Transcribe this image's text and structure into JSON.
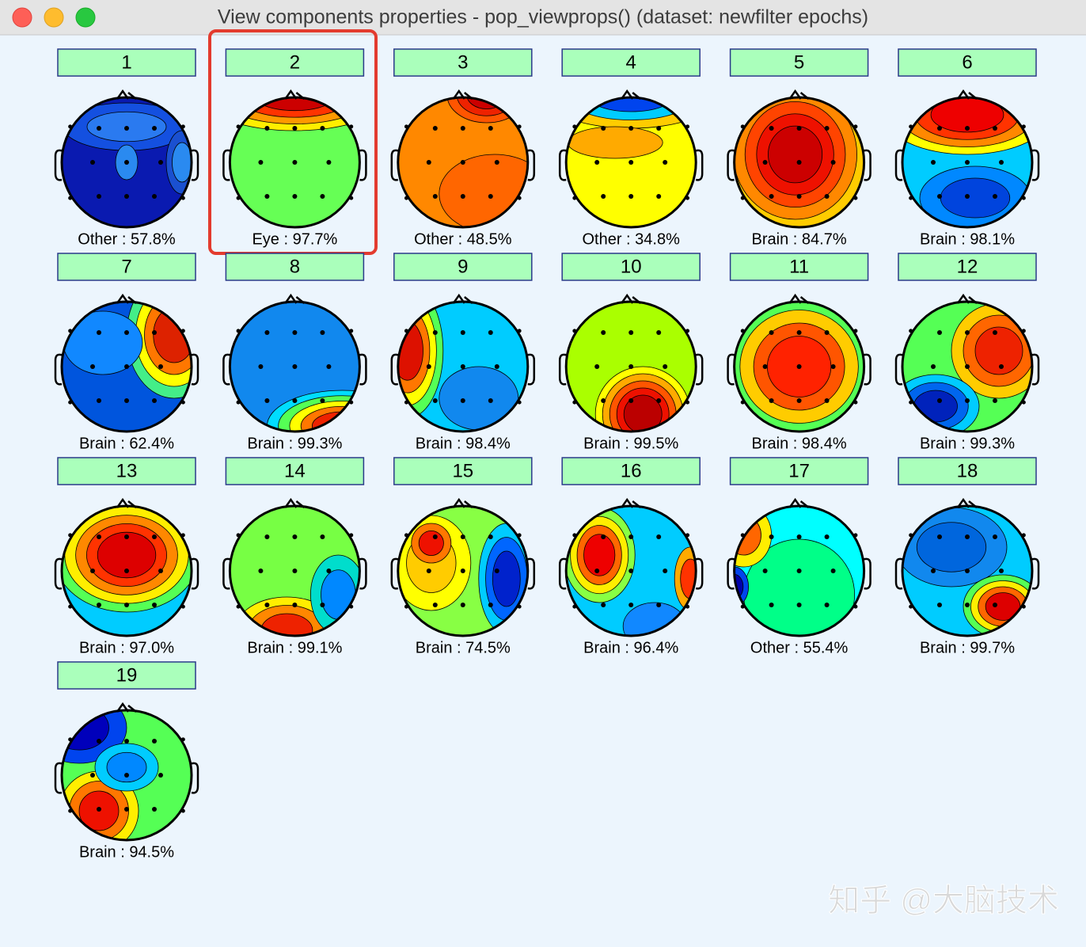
{
  "window": {
    "title": "View components properties - pop_viewprops() (dataset: newfilter epochs)"
  },
  "components": [
    {
      "number": "1",
      "label": "Other : 57.8%"
    },
    {
      "number": "2",
      "label": "Eye : 97.7%"
    },
    {
      "number": "3",
      "label": "Other : 48.5%"
    },
    {
      "number": "4",
      "label": "Other : 34.8%"
    },
    {
      "number": "5",
      "label": "Brain : 84.7%"
    },
    {
      "number": "6",
      "label": "Brain : 98.1%"
    },
    {
      "number": "7",
      "label": "Brain : 62.4%"
    },
    {
      "number": "8",
      "label": "Brain : 99.3%"
    },
    {
      "number": "9",
      "label": "Brain : 98.4%"
    },
    {
      "number": "10",
      "label": "Brain : 99.5%"
    },
    {
      "number": "11",
      "label": "Brain : 98.4%"
    },
    {
      "number": "12",
      "label": "Brain : 99.3%"
    },
    {
      "number": "13",
      "label": "Brain : 97.0%"
    },
    {
      "number": "14",
      "label": "Brain : 99.1%"
    },
    {
      "number": "15",
      "label": "Brain : 74.5%"
    },
    {
      "number": "16",
      "label": "Brain : 96.4%"
    },
    {
      "number": "17",
      "label": "Other : 55.4%"
    },
    {
      "number": "18",
      "label": "Brain : 99.7%"
    },
    {
      "number": "19",
      "label": "Brain : 94.5%"
    }
  ],
  "watermark": "知乎 @大脑技术"
}
